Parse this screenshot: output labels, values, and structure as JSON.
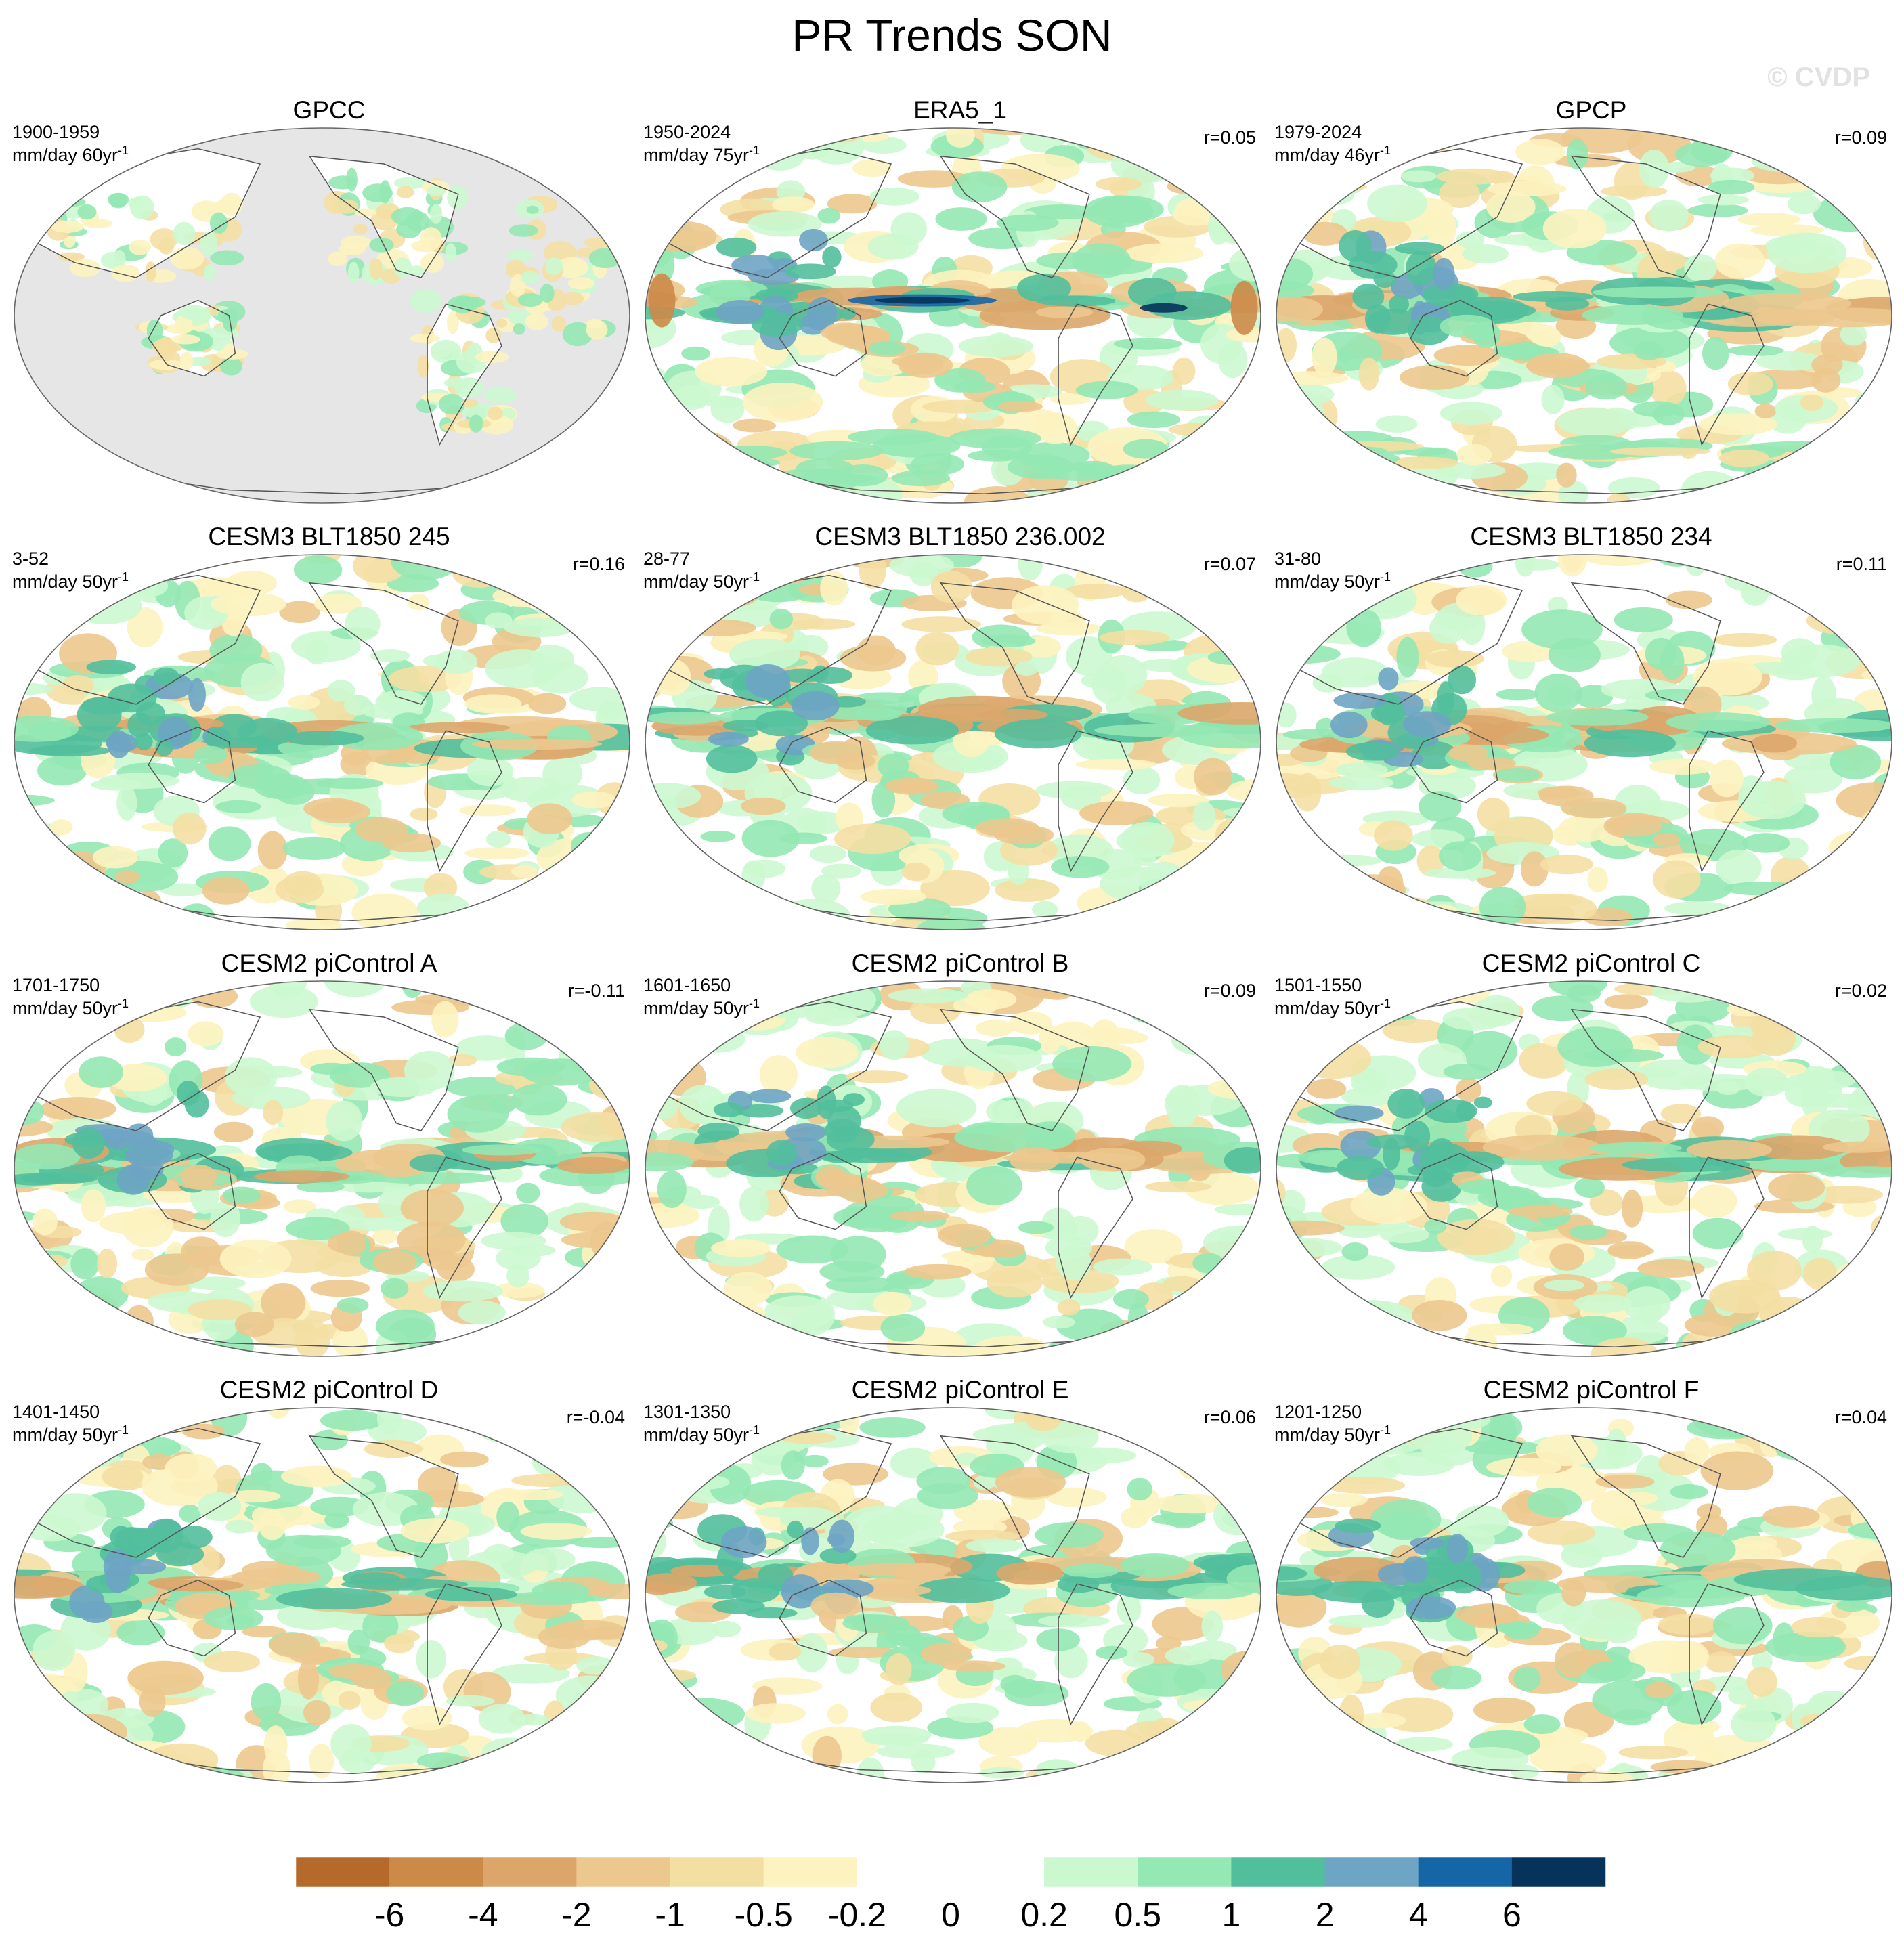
{
  "figure": {
    "title": "PR Trends SON",
    "watermark": "© CVDP"
  },
  "chart_data": {
    "type": "heatmap",
    "title": "PR Trends SON",
    "variable": "PR",
    "season": "SON",
    "panels": [
      {
        "title": "GPCC",
        "period": "1900-1959",
        "units": "mm/day 60yr",
        "units_exponent": "-1",
        "correlation": "",
        "pattern": "gpcc"
      },
      {
        "title": "ERA5_1",
        "period": "1950-2024",
        "units": "mm/day 75yr",
        "units_exponent": "-1",
        "correlation": "r=0.05",
        "pattern": "era5"
      },
      {
        "title": "GPCP",
        "period": "1979-2024",
        "units": "mm/day 46yr",
        "units_exponent": "-1",
        "correlation": "r=0.09",
        "pattern": "gpcp"
      },
      {
        "title": "CESM3 BLT1850 245",
        "period": "3-52",
        "units": "mm/day 50yr",
        "units_exponent": "-1",
        "correlation": "r=0.16",
        "pattern": "model"
      },
      {
        "title": "CESM3 BLT1850 236.002",
        "period": "28-77",
        "units": "mm/day 50yr",
        "units_exponent": "-1",
        "correlation": "r=0.07",
        "pattern": "model"
      },
      {
        "title": "CESM3 BLT1850 234",
        "period": "31-80",
        "units": "mm/day 50yr",
        "units_exponent": "-1",
        "correlation": "r=0.11",
        "pattern": "model"
      },
      {
        "title": "CESM2 piControl A",
        "period": "1701-1750",
        "units": "mm/day 50yr",
        "units_exponent": "-1",
        "correlation": "r=-0.11",
        "pattern": "model"
      },
      {
        "title": "CESM2 piControl B",
        "period": "1601-1650",
        "units": "mm/day 50yr",
        "units_exponent": "-1",
        "correlation": "r=0.09",
        "pattern": "model"
      },
      {
        "title": "CESM2 piControl C",
        "period": "1501-1550",
        "units": "mm/day 50yr",
        "units_exponent": "-1",
        "correlation": "r=0.02",
        "pattern": "model"
      },
      {
        "title": "CESM2 piControl D",
        "period": "1401-1450",
        "units": "mm/day 50yr",
        "units_exponent": "-1",
        "correlation": "r=-0.04",
        "pattern": "model"
      },
      {
        "title": "CESM2 piControl E",
        "period": "1301-1350",
        "units": "mm/day 50yr",
        "units_exponent": "-1",
        "correlation": "r=0.06",
        "pattern": "model"
      },
      {
        "title": "CESM2 piControl F",
        "period": "1201-1250",
        "units": "mm/day 50yr",
        "units_exponent": "-1",
        "correlation": "r=0.04",
        "pattern": "model"
      }
    ],
    "colorbar": {
      "levels": [
        "-6",
        "-4",
        "-2",
        "-1",
        "-0.5",
        "-0.2",
        "0",
        "0.2",
        "0.5",
        "1",
        "2",
        "4",
        "6"
      ],
      "colors": [
        "#b5692a",
        "#cc8a48",
        "#dca66b",
        "#ecc88e",
        "#f4dfa3",
        "#fdf3c0",
        "#ffffff",
        "#ffffff",
        "#ccf8d0",
        "#94e8b4",
        "#52bf9c",
        "#6ea4c4",
        "#1566a6",
        "#06335a"
      ]
    }
  }
}
